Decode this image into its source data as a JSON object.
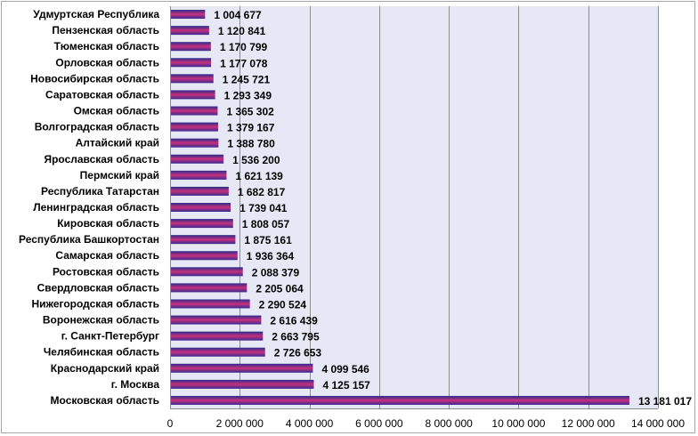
{
  "chart_data": {
    "type": "bar",
    "orientation": "horizontal",
    "categories": [
      "Удмуртская Республика",
      "Пензенская область",
      "Тюменская область",
      "Орловская область",
      "Новосибирская область",
      "Саратовская область",
      "Омская область",
      "Волгоградская область",
      "Алтайский край",
      "Ярославская область",
      "Пермский край",
      "Республика Татарстан",
      "Ленинградская область",
      "Кировская область",
      "Республика Башкортостан",
      "Самарская область",
      "Ростовская область",
      "Свердловская область",
      "Нижегородская область",
      "Воронежская область",
      "г. Санкт-Петербург",
      "Челябинская область",
      "Краснодарский край",
      "г. Москва",
      "Московская область"
    ],
    "values": [
      1004677,
      1120841,
      1170799,
      1177078,
      1245721,
      1293349,
      1365302,
      1379167,
      1388780,
      1536200,
      1621139,
      1682817,
      1739041,
      1808057,
      1875161,
      1936364,
      2088379,
      2205064,
      2290524,
      2616439,
      2663795,
      2726653,
      4099546,
      4125157,
      13181017
    ],
    "value_labels": [
      "1 004 677",
      "1 120 841",
      "1 170 799",
      "1 177 078",
      "1 245 721",
      "1 293 349",
      "1 365 302",
      "1 379 167",
      "1 388 780",
      "1 536 200",
      "1 621 139",
      "1 682 817",
      "1 739 041",
      "1 808 057",
      "1 875 161",
      "1 936 364",
      "2 088 379",
      "2 205 064",
      "2 290 524",
      "2 616 439",
      "2 663 795",
      "2 726 653",
      "4 099 546",
      "4 125 157",
      "13 181 017"
    ],
    "xticks": [
      0,
      2000000,
      4000000,
      6000000,
      8000000,
      10000000,
      12000000,
      14000000
    ],
    "xtick_labels": [
      "0",
      "2 000 000",
      "4 000 000",
      "6 000 000",
      "8 000 000",
      "10 000 000",
      "12 000 000",
      "14 000 000"
    ],
    "xlim": [
      0,
      14000000
    ],
    "grid": true,
    "legend": "none",
    "title": "",
    "xlabel": "",
    "ylabel": ""
  },
  "colors": {
    "plot_background": "#e6e8f5",
    "gridline": "#8c8c8c",
    "bar_top": "#2a2b8a",
    "bar_mid": "#c6307e",
    "bar_bottom": "#3a2a90",
    "frame_border": "#a6a6a6"
  }
}
